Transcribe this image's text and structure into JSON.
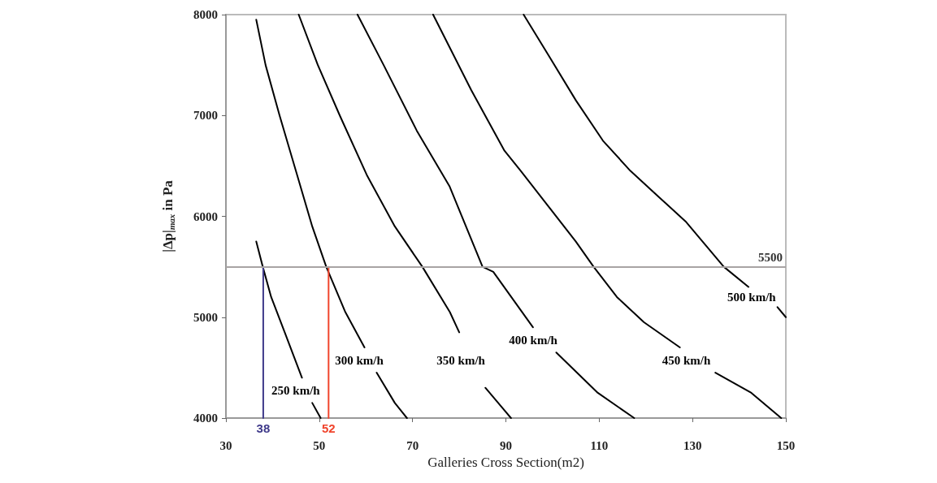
{
  "chart_data": {
    "type": "line",
    "xlabel": "Galleries Cross Section(m2)",
    "ylabel": "|Δp|$_{max}$ in Pa",
    "xlim": [
      30,
      150
    ],
    "xticks": [
      30,
      50,
      70,
      90,
      110,
      130,
      150
    ],
    "ylim": [
      4000,
      8000
    ],
    "yticks": [
      4000,
      5000,
      6000,
      7000,
      8000
    ],
    "grid": false,
    "legend": false,
    "marker": "none",
    "line_style": "solid",
    "series": [
      {
        "name": "250 km/h",
        "color": "#000000",
        "x": [
          36.5,
          37.9,
          39.7,
          42.6,
          46.3,
          47.4,
          48.5,
          50.3
        ],
        "values": [
          5750,
          5500,
          5200,
          4850,
          4400,
          null,
          4150,
          4000
        ]
      },
      {
        "name": "300 km/h",
        "color": "#000000",
        "x": [
          36.5,
          38.5,
          41.5,
          45.0,
          48.5,
          51.5,
          55.6,
          59.7,
          61.0,
          62.3,
          66.2,
          68.8
        ],
        "values": [
          7950,
          7500,
          7000,
          6450,
          5900,
          5500,
          5050,
          4700,
          null,
          4450,
          4150,
          4000
        ]
      },
      {
        "name": "350 km/h",
        "color": "#000000",
        "x": [
          45.6,
          49.7,
          54.4,
          60.3,
          66.2,
          72.1,
          78.0,
          80.0,
          82.8,
          85.6,
          91.1
        ],
        "values": [
          8000,
          7500,
          7000,
          6400,
          5900,
          5500,
          5050,
          4850,
          null,
          4300,
          4000
        ]
      },
      {
        "name": "400 km/h",
        "color": "#000000",
        "x": [
          58.2,
          63.8,
          70.9,
          77.9,
          85.0,
          87.3,
          95.8,
          98.3,
          100.8,
          109.7,
          117.5
        ],
        "values": [
          8000,
          7500,
          6850,
          6300,
          5500,
          5450,
          4900,
          null,
          4650,
          4250,
          4000
        ]
      },
      {
        "name": "450 km/h",
        "color": "#000000",
        "x": [
          74.4,
          82.6,
          89.7,
          93.2,
          99.1,
          105.0,
          108.8,
          113.8,
          119.6,
          127.3,
          131.1,
          134.9,
          142.6,
          149.0
        ],
        "values": [
          8000,
          7250,
          6650,
          6450,
          6100,
          5750,
          5500,
          5200,
          4950,
          4700,
          null,
          4450,
          4250,
          4000
        ]
      },
      {
        "name": "500 km/h",
        "color": "#000000",
        "x": [
          93.8,
          99.1,
          105.0,
          110.8,
          116.7,
          122.6,
          128.5,
          136.7,
          142.0,
          145.1,
          148.2,
          150
        ],
        "values": [
          8000,
          7600,
          7150,
          6750,
          6450,
          6200,
          5950,
          5500,
          5300,
          null,
          5100,
          5000
        ]
      },
      {
        "color": "#3f3a8a",
        "x": [
          38,
          38
        ],
        "values": [
          4000,
          5500
        ]
      },
      {
        "color": "#f0442c",
        "x": [
          52,
          52
        ],
        "values": [
          4000,
          5500
        ]
      }
    ],
    "annotations": [
      {
        "text": "38",
        "x": 38,
        "y": 4000
      },
      {
        "text": "52",
        "x": 52,
        "y": 4000
      }
    ],
    "ref_lines": [
      {
        "axis": "y",
        "value": 5500,
        "label": "5500",
        "color": "#a8a4a4"
      }
    ]
  }
}
